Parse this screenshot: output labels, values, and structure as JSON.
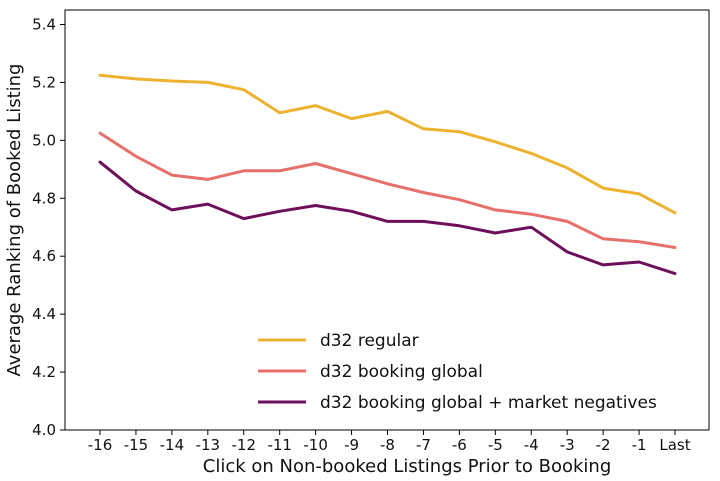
{
  "chart_data": {
    "type": "line",
    "title": "",
    "xlabel": "Click on Non-booked Listings Prior to Booking",
    "ylabel": "Average Ranking of Booked Listing",
    "categories": [
      "-16",
      "-15",
      "-14",
      "-13",
      "-12",
      "-11",
      "-10",
      "-9",
      "-8",
      "-7",
      "-6",
      "-5",
      "-4",
      "-3",
      "-2",
      "-1",
      "Last"
    ],
    "ylim": [
      4.0,
      5.45
    ],
    "yticks": [
      "4.0",
      "4.2",
      "4.4",
      "4.6",
      "4.8",
      "5.0",
      "5.2",
      "5.4"
    ],
    "grid": false,
    "legend_position": "lower-center",
    "series": [
      {
        "name": "d32 regular",
        "color": "#EDB230",
        "values": [
          5.225,
          5.212,
          5.205,
          5.2,
          5.175,
          5.095,
          5.12,
          5.075,
          5.1,
          5.04,
          5.03,
          4.995,
          4.955,
          4.905,
          4.835,
          4.815,
          4.75
        ]
      },
      {
        "name": "d32 booking global",
        "color": "#E8706B",
        "values": [
          5.025,
          4.945,
          4.88,
          4.865,
          4.895,
          4.895,
          4.92,
          4.885,
          4.85,
          4.82,
          4.795,
          4.76,
          4.745,
          4.72,
          4.66,
          4.65,
          4.63
        ]
      },
      {
        "name": "d32 booking global + market negatives",
        "color": "#6E0F5C",
        "values": [
          4.925,
          4.825,
          4.76,
          4.78,
          4.73,
          4.755,
          4.775,
          4.755,
          4.72,
          4.72,
          4.705,
          4.68,
          4.7,
          4.615,
          4.57,
          4.58,
          4.54
        ]
      }
    ]
  }
}
